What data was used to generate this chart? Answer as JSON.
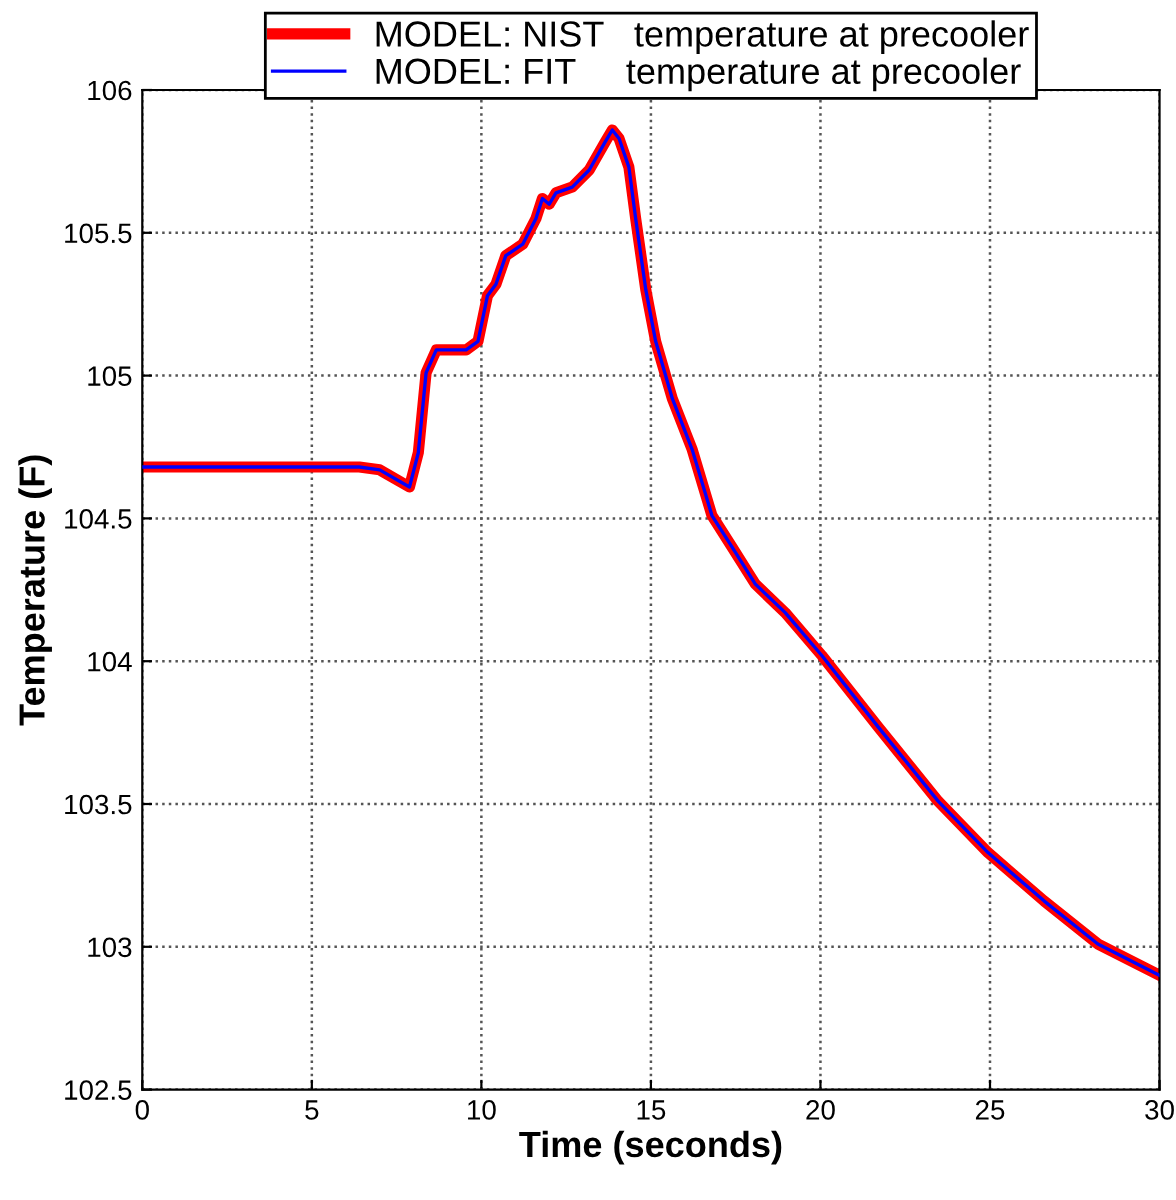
{
  "chart_data": {
    "type": "line",
    "xlabel": "Time (seconds)",
    "ylabel": "Temperature (F)",
    "x": [
      0,
      6.4,
      7.0,
      7.88,
      8.14,
      8.37,
      8.67,
      9.55,
      9.9,
      10.18,
      10.43,
      10.72,
      11.22,
      11.61,
      11.8,
      12.0,
      12.2,
      12.68,
      13.18,
      13.66,
      13.86,
      14.06,
      14.35,
      14.55,
      14.85,
      15.14,
      15.63,
      16.22,
      16.8,
      17.39,
      18.08,
      18.96,
      20.04,
      21.7,
      23.47,
      24.94,
      26.6,
      28.18,
      30
    ],
    "series": [
      {
        "name": "MODEL: NIST   temperature at precooler",
        "color": "#ff0000",
        "values": [
          104.68,
          104.68,
          104.67,
          104.61,
          104.73,
          105.01,
          105.09,
          105.09,
          105.12,
          105.28,
          105.32,
          105.42,
          105.46,
          105.55,
          105.62,
          105.6,
          105.64,
          105.66,
          105.72,
          105.82,
          105.86,
          105.83,
          105.73,
          105.55,
          105.3,
          105.12,
          104.92,
          104.74,
          104.51,
          104.4,
          104.27,
          104.17,
          104.02,
          103.77,
          103.51,
          103.33,
          103.16,
          103.01,
          102.9
        ]
      },
      {
        "name": "MODEL: FIT     temperature at precooler",
        "color": "#0000ff",
        "values": [
          104.68,
          104.68,
          104.67,
          104.61,
          104.73,
          105.01,
          105.09,
          105.09,
          105.12,
          105.28,
          105.32,
          105.42,
          105.46,
          105.55,
          105.62,
          105.6,
          105.64,
          105.66,
          105.72,
          105.82,
          105.86,
          105.83,
          105.73,
          105.55,
          105.3,
          105.12,
          104.92,
          104.74,
          104.51,
          104.4,
          104.27,
          104.17,
          104.02,
          103.77,
          103.51,
          103.33,
          103.16,
          103.01,
          102.9
        ]
      }
    ],
    "xlim": [
      0,
      30
    ],
    "xticks": [
      0,
      5,
      10,
      15,
      20,
      25,
      30
    ],
    "ylim": [
      102.5,
      106
    ],
    "yticks": [
      102.5,
      103,
      103.5,
      104,
      104.5,
      105,
      105.5,
      106
    ],
    "grid": true,
    "legend": "top",
    "line_style": "solid",
    "marker": "none"
  }
}
